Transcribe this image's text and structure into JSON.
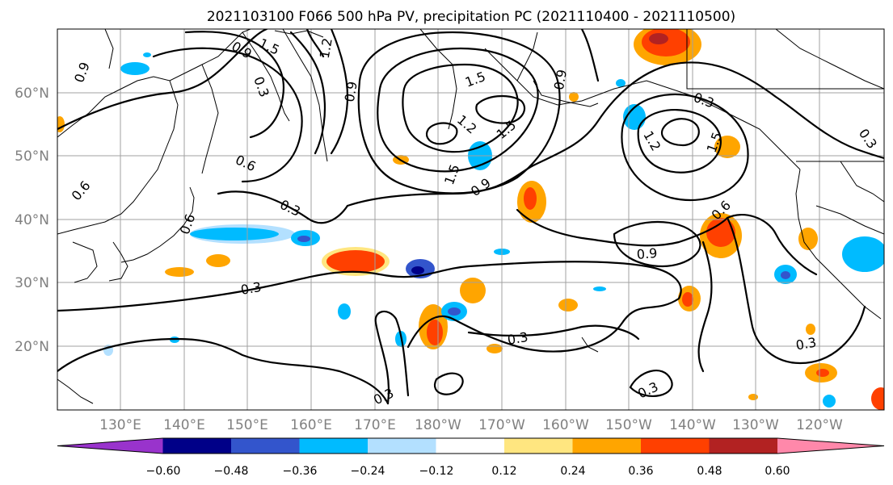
{
  "title": "2021103100 F066 500 hPa PV, precipitation PC (2021110400 - 2021110500)",
  "map": {
    "lat_labels": [
      "60°N",
      "50°N",
      "40°N",
      "30°N",
      "20°N"
    ],
    "lon_labels": [
      "130°E",
      "140°E",
      "150°E",
      "160°E",
      "170°E",
      "180°W",
      "170°W",
      "160°W",
      "150°W",
      "140°W",
      "130°W",
      "120°W"
    ],
    "contour_labels": [
      {
        "text": "0.9"
      },
      {
        "text": "0.3"
      },
      {
        "text": "0.9"
      },
      {
        "text": "1.5"
      },
      {
        "text": "1.2"
      },
      {
        "text": "0.9"
      },
      {
        "text": "1.5"
      },
      {
        "text": "0.9"
      },
      {
        "text": "1.2"
      },
      {
        "text": "1.5"
      },
      {
        "text": "1.5"
      },
      {
        "text": "0.9"
      },
      {
        "text": "0.6"
      },
      {
        "text": "0.6"
      },
      {
        "text": "0.3"
      },
      {
        "text": "0.6"
      },
      {
        "text": "0.3"
      },
      {
        "text": "0.9"
      },
      {
        "text": "0.3"
      },
      {
        "text": "0.3"
      },
      {
        "text": "0.3"
      },
      {
        "text": "0.3"
      },
      {
        "text": "0.3"
      },
      {
        "text": "1.2"
      },
      {
        "text": "1.5"
      },
      {
        "text": "0.6"
      },
      {
        "text": "0.3"
      }
    ]
  },
  "colorbar": {
    "colors": [
      "#9933cc",
      "#000088",
      "#3355cc",
      "#00bbff",
      "#b3e0ff",
      "#ffffff",
      "#ffe680",
      "#ffa500",
      "#ff4000",
      "#b22222",
      "#ff88aa"
    ],
    "labels": [
      "−0.60",
      "−0.48",
      "−0.36",
      "−0.24",
      "−0.12",
      "0.12",
      "0.24",
      "0.36",
      "0.48",
      "0.60"
    ]
  }
}
